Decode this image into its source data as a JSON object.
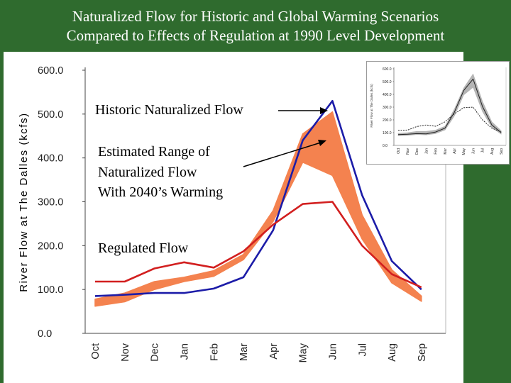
{
  "title": {
    "line1": "Naturalized Flow for Historic and Global Warming Scenarios",
    "line2": "Compared to Effects of Regulation at 1990 Level Development"
  },
  "colors": {
    "background": "#2f6b2e",
    "historic": "#1c1ca8",
    "regulated": "#d21f1f",
    "warming_band": "#f4824f"
  },
  "annotations": {
    "historic": "Historic Naturalized Flow",
    "warming_1": "Estimated Range of",
    "warming_2": "Naturalized Flow",
    "warming_3": "With 2040’s Warming",
    "regulated": "Regulated Flow"
  },
  "chart_data": [
    {
      "type": "line",
      "title": "",
      "xlabel": "",
      "ylabel": "River Flow at The Dalles (kcfs)",
      "categories": [
        "Oct",
        "Nov",
        "Dec",
        "Jan",
        "Feb",
        "Mar",
        "Apr",
        "May",
        "Jun",
        "Jul",
        "Aug",
        "Sep"
      ],
      "ylim": [
        0,
        600
      ],
      "yticks": [
        "0.0",
        "100.0",
        "200.0",
        "300.0",
        "400.0",
        "500.0",
        "600.0"
      ],
      "grid": false,
      "series": [
        {
          "name": "Historic Naturalized Flow",
          "values": [
            85,
            88,
            92,
            92,
            102,
            128,
            235,
            440,
            530,
            315,
            165,
            100
          ]
        },
        {
          "name": "Regulated Flow",
          "values": [
            118,
            118,
            148,
            162,
            150,
            187,
            248,
            295,
            300,
            200,
            135,
            105
          ]
        }
      ],
      "band": {
        "name": "Estimated Range of Naturalized Flow With 2040’s Warming",
        "upper": [
          78,
          92,
          118,
          128,
          143,
          180,
          280,
          455,
          505,
          270,
          145,
          85
        ],
        "lower": [
          62,
          72,
          100,
          118,
          130,
          168,
          255,
          390,
          360,
          215,
          115,
          73
        ]
      }
    },
    {
      "type": "line",
      "title": "",
      "ylabel": "River Flow at The Dalles (kcfs)",
      "categories": [
        "Oct",
        "Nov",
        "Dec",
        "Jan",
        "Feb",
        "Mar",
        "Apr",
        "May",
        "Jun",
        "Jul",
        "Aug",
        "Sep"
      ],
      "ylim": [
        0,
        600
      ],
      "yticks": [
        "0.0",
        "100.0",
        "200.0",
        "300.0",
        "400.0",
        "500.0",
        "600.0"
      ],
      "series": [
        {
          "values": [
            85,
            88,
            92,
            90,
            105,
            135,
            260,
            430,
            520,
            305,
            160,
            100
          ]
        },
        {
          "values": [
            118,
            120,
            148,
            160,
            150,
            185,
            248,
            295,
            300,
            200,
            135,
            105
          ]
        }
      ],
      "band": {
        "upper": [
          95,
          100,
          110,
          110,
          120,
          150,
          285,
          450,
          560,
          345,
          185,
          115
        ],
        "lower": [
          75,
          78,
          85,
          82,
          92,
          120,
          230,
          395,
          455,
          265,
          140,
          88
        ]
      }
    }
  ]
}
